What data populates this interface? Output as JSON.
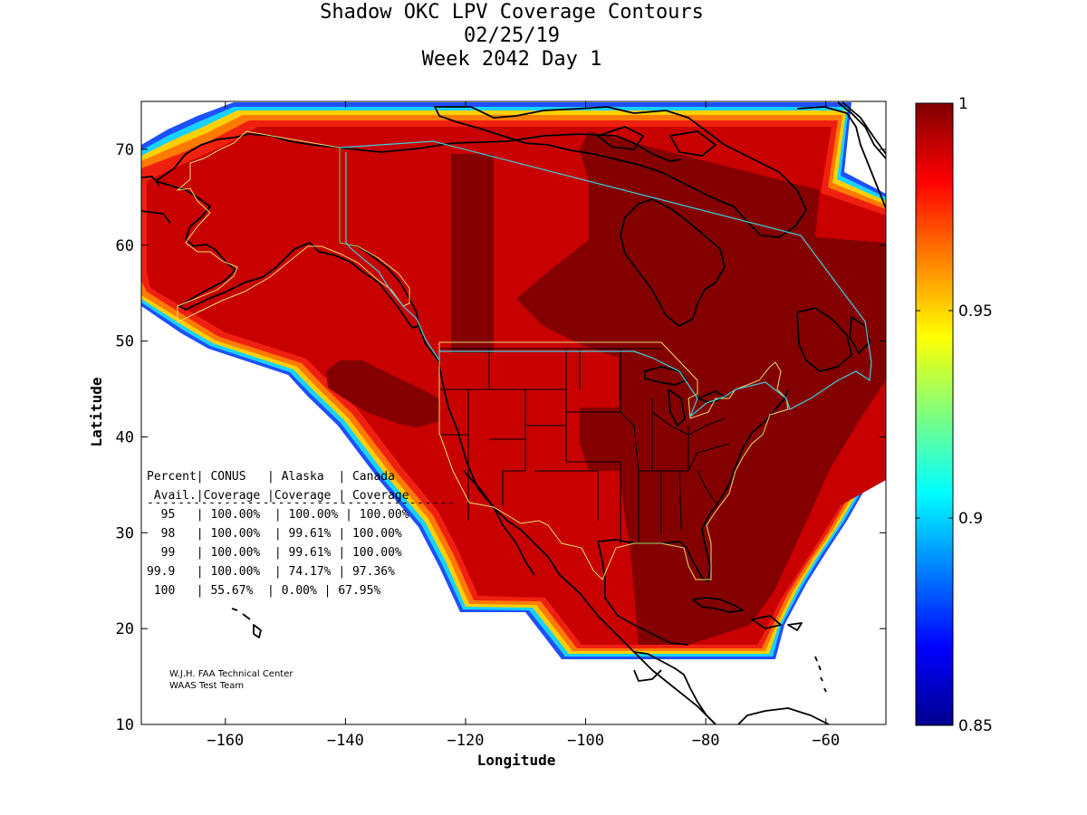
{
  "title": {
    "line1": "Shadow OKC LPV Coverage Contours",
    "line2": "02/25/19",
    "line3": "Week 2042 Day 1"
  },
  "axes": {
    "xlabel": "Longitude",
    "ylabel": "Latitude",
    "xlim": [
      -174,
      -50
    ],
    "ylim": [
      10,
      75
    ],
    "xticks": [
      -160,
      -140,
      -120,
      -100,
      -80,
      -60
    ],
    "yticks": [
      10,
      20,
      30,
      40,
      50,
      60,
      70
    ]
  },
  "colorbar": {
    "min": 0.85,
    "max": 1,
    "ticks": [
      "1",
      "0.95",
      "0.9",
      "0.85"
    ],
    "colormap": "jet"
  },
  "table": {
    "header1": "Percent| CONUS   | Alaska  | Canada",
    "header2": " Avail.|Coverage |Coverage | Coverage",
    "rule": "----------------------------------------",
    "rows": [
      "  95   | 100.00%  | 100.00% | 100.00%",
      "  98   | 100.00%  | 99.61% | 100.00%",
      "  99   | 100.00%  | 99.61% | 100.00%",
      "99.9   | 100.00%  | 74.17% | 97.36%",
      " 100   | 55.67%  | 0.00% | 67.95%"
    ]
  },
  "credit": {
    "line1": "W.J.H. FAA Technical Center",
    "line2": "WAAS Test Team"
  },
  "colors": {
    "coverage_main": "#c80000",
    "coverage_core": "#840000",
    "edge_outer": "#1e50ff",
    "edge_mid": "#18d2ff",
    "edge_inner": "#ffd000",
    "edge_orange": "#ff7a00",
    "edge_red": "#f02010",
    "service_area": "#e8e070",
    "canada_boundary": "#40d0e0"
  }
}
